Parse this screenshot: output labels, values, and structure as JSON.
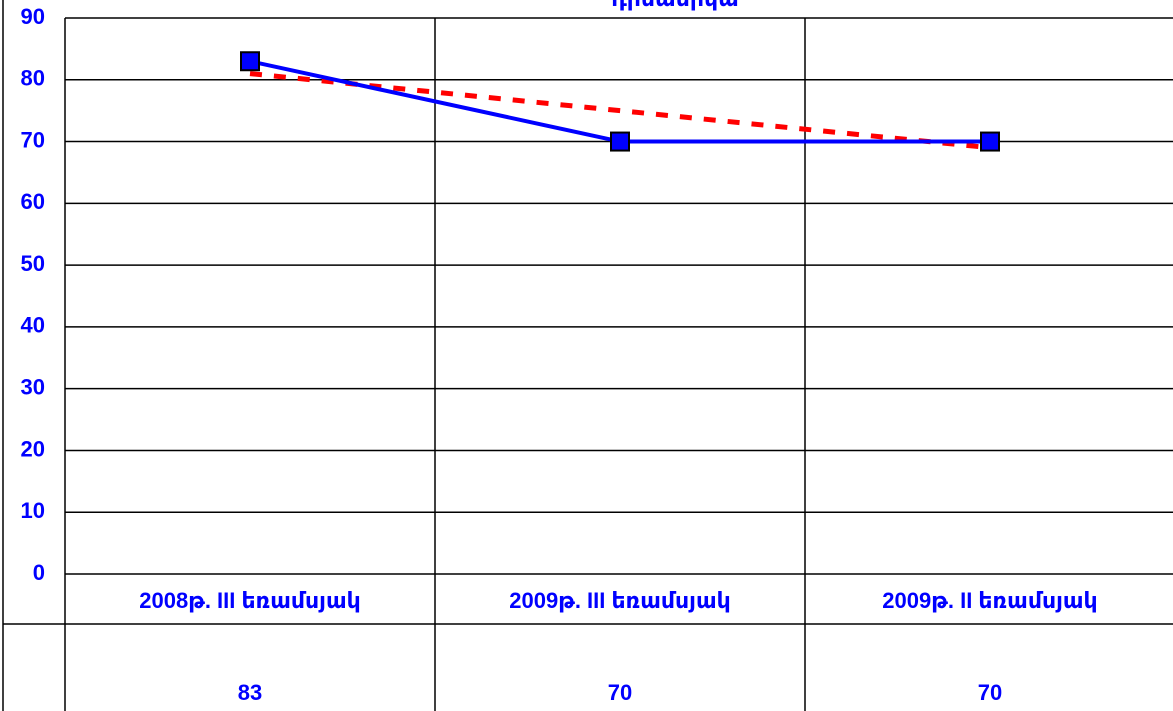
{
  "chart_data": {
    "type": "line",
    "title": "դինամիկա",
    "categories": [
      "2008թ.   III   եռամսյակ",
      "2009թ.    III եռամսյակ",
      "2009թ.  II եռամսյակ"
    ],
    "series": [
      {
        "color": "#0000ff",
        "values": [
          83,
          70,
          70
        ],
        "marker": "square"
      },
      {
        "color": "#ff0000",
        "values": [
          81,
          75,
          69
        ],
        "dashed": true
      }
    ],
    "ylim": [
      0,
      90
    ],
    "yticks": [
      0,
      10,
      20,
      30,
      40,
      50,
      60,
      70,
      80,
      90
    ],
    "grid": true
  }
}
